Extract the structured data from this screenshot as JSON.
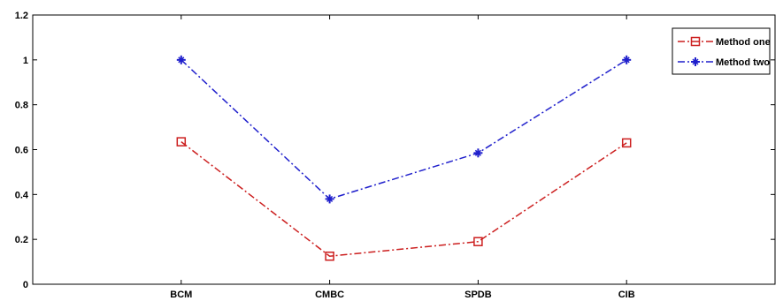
{
  "chart_data": {
    "type": "line",
    "categories": [
      "BCM",
      "CMBC",
      "SPDB",
      "CIB"
    ],
    "series": [
      {
        "name": "Method one",
        "values": [
          0.635,
          0.125,
          0.19,
          0.63
        ],
        "color": "#cc1f1f",
        "marker": "square"
      },
      {
        "name": "Method two",
        "values": [
          1.0,
          0.38,
          0.585,
          1.0
        ],
        "color": "#1f1fcc",
        "marker": "star"
      }
    ],
    "ylim": [
      0,
      1.2
    ],
    "y_ticks": [
      "0",
      "0.2",
      "0.4",
      "0.6",
      "0.8",
      "1",
      "1.2"
    ],
    "x_range": [
      0,
      5
    ],
    "line_style": "dash-dot",
    "grid": false,
    "legend_position": "top-right"
  }
}
